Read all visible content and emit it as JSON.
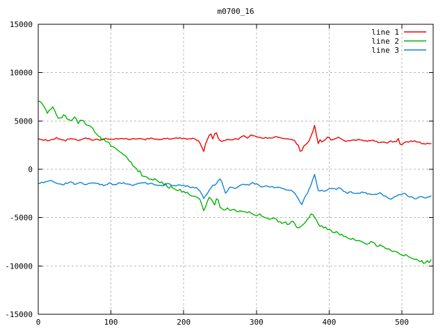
{
  "window": {
    "background": "#ffffff",
    "plot_title": "m0700_16"
  },
  "chart_data": {
    "type": "line",
    "title": "m0700_16",
    "xlabel": "",
    "ylabel": "",
    "xlim": [
      0,
      543
    ],
    "ylim": [
      -15000,
      15000
    ],
    "xticks": [
      0,
      100,
      200,
      300,
      400,
      500
    ],
    "yticks": [
      15000,
      10000,
      5000,
      0,
      -5000,
      -10000,
      -15000
    ],
    "grid": true,
    "grid_color": "#b8b8b8",
    "axis_color": "#000000",
    "legend_position": "top-right-inside",
    "series": [
      {
        "name": "line 1",
        "color": "#ee0000",
        "noise_amplitude": 110,
        "points": [
          [
            0,
            3100
          ],
          [
            15,
            3000
          ],
          [
            25,
            3250
          ],
          [
            35,
            2950
          ],
          [
            45,
            3150
          ],
          [
            55,
            3000
          ],
          [
            65,
            3200
          ],
          [
            75,
            3100
          ],
          [
            85,
            3050
          ],
          [
            95,
            3150
          ],
          [
            105,
            3100
          ],
          [
            115,
            3250
          ],
          [
            125,
            3100
          ],
          [
            135,
            3200
          ],
          [
            145,
            3100
          ],
          [
            155,
            3150
          ],
          [
            165,
            3100
          ],
          [
            175,
            3200
          ],
          [
            185,
            3150
          ],
          [
            195,
            3250
          ],
          [
            205,
            3100
          ],
          [
            215,
            3150
          ],
          [
            221,
            2950
          ],
          [
            224,
            2500
          ],
          [
            227,
            1750
          ],
          [
            230,
            2600
          ],
          [
            233,
            3200
          ],
          [
            237,
            3900
          ],
          [
            239,
            2900
          ],
          [
            244,
            3950
          ],
          [
            247,
            3300
          ],
          [
            250,
            3000
          ],
          [
            255,
            2950
          ],
          [
            265,
            3050
          ],
          [
            275,
            3150
          ],
          [
            283,
            3500
          ],
          [
            288,
            3250
          ],
          [
            293,
            3600
          ],
          [
            298,
            3400
          ],
          [
            305,
            3250
          ],
          [
            315,
            3200
          ],
          [
            325,
            3300
          ],
          [
            335,
            3250
          ],
          [
            345,
            3050
          ],
          [
            352,
            2950
          ],
          [
            357,
            2500
          ],
          [
            361,
            1700
          ],
          [
            365,
            2300
          ],
          [
            369,
            2750
          ],
          [
            373,
            3000
          ],
          [
            377,
            3800
          ],
          [
            380,
            4550
          ],
          [
            382,
            3700
          ],
          [
            385,
            2600
          ],
          [
            388,
            3100
          ],
          [
            391,
            2750
          ],
          [
            395,
            3150
          ],
          [
            399,
            3400
          ],
          [
            403,
            2950
          ],
          [
            407,
            3200
          ],
          [
            412,
            3300
          ],
          [
            417,
            3100
          ],
          [
            422,
            2950
          ],
          [
            430,
            3000
          ],
          [
            440,
            3050
          ],
          [
            450,
            2900
          ],
          [
            460,
            2950
          ],
          [
            470,
            2800
          ],
          [
            478,
            2700
          ],
          [
            485,
            2900
          ],
          [
            492,
            2750
          ],
          [
            495,
            3180
          ],
          [
            498,
            2450
          ],
          [
            505,
            2800
          ],
          [
            515,
            2900
          ],
          [
            525,
            2750
          ],
          [
            533,
            2650
          ],
          [
            541,
            2750
          ]
        ]
      },
      {
        "name": "line 2",
        "color": "#00b400",
        "noise_amplitude": 190,
        "points": [
          [
            0,
            6900
          ],
          [
            4,
            7050
          ],
          [
            8,
            6600
          ],
          [
            12,
            5800
          ],
          [
            16,
            6200
          ],
          [
            20,
            6450
          ],
          [
            24,
            5900
          ],
          [
            28,
            5100
          ],
          [
            32,
            5400
          ],
          [
            36,
            5650
          ],
          [
            40,
            5200
          ],
          [
            45,
            5050
          ],
          [
            50,
            5350
          ],
          [
            55,
            4900
          ],
          [
            60,
            5050
          ],
          [
            65,
            4700
          ],
          [
            70,
            4550
          ],
          [
            75,
            4200
          ],
          [
            80,
            3700
          ],
          [
            85,
            3250
          ],
          [
            90,
            3050
          ],
          [
            95,
            2800
          ],
          [
            100,
            2450
          ],
          [
            105,
            2250
          ],
          [
            110,
            2000
          ],
          [
            115,
            1700
          ],
          [
            120,
            1300
          ],
          [
            125,
            900
          ],
          [
            130,
            400
          ],
          [
            135,
            100
          ],
          [
            140,
            -300
          ],
          [
            145,
            -700
          ],
          [
            150,
            -950
          ],
          [
            155,
            -1150
          ],
          [
            160,
            -1000
          ],
          [
            165,
            -1250
          ],
          [
            170,
            -1400
          ],
          [
            175,
            -1600
          ],
          [
            180,
            -1800
          ],
          [
            185,
            -1950
          ],
          [
            190,
            -2100
          ],
          [
            195,
            -2200
          ],
          [
            200,
            -2300
          ],
          [
            205,
            -2500
          ],
          [
            210,
            -2700
          ],
          [
            215,
            -2900
          ],
          [
            220,
            -3000
          ],
          [
            224,
            -3400
          ],
          [
            227,
            -4300
          ],
          [
            230,
            -3900
          ],
          [
            233,
            -3300
          ],
          [
            236,
            -2700
          ],
          [
            239,
            -3200
          ],
          [
            242,
            -3700
          ],
          [
            246,
            -2900
          ],
          [
            250,
            -3900
          ],
          [
            255,
            -4200
          ],
          [
            260,
            -4000
          ],
          [
            265,
            -4300
          ],
          [
            270,
            -4100
          ],
          [
            275,
            -4400
          ],
          [
            280,
            -4250
          ],
          [
            285,
            -4500
          ],
          [
            290,
            -4400
          ],
          [
            295,
            -4650
          ],
          [
            300,
            -4800
          ],
          [
            305,
            -4600
          ],
          [
            310,
            -4900
          ],
          [
            315,
            -5050
          ],
          [
            320,
            -5200
          ],
          [
            325,
            -5000
          ],
          [
            330,
            -5400
          ],
          [
            335,
            -5600
          ],
          [
            340,
            -5400
          ],
          [
            345,
            -5700
          ],
          [
            350,
            -5500
          ],
          [
            355,
            -5900
          ],
          [
            360,
            -6100
          ],
          [
            365,
            -5700
          ],
          [
            370,
            -5300
          ],
          [
            374,
            -4800
          ],
          [
            378,
            -4600
          ],
          [
            382,
            -5300
          ],
          [
            386,
            -5700
          ],
          [
            390,
            -5900
          ],
          [
            395,
            -6100
          ],
          [
            400,
            -6200
          ],
          [
            405,
            -6400
          ],
          [
            410,
            -6550
          ],
          [
            415,
            -6700
          ],
          [
            420,
            -6900
          ],
          [
            425,
            -7100
          ],
          [
            430,
            -7250
          ],
          [
            435,
            -7150
          ],
          [
            440,
            -7400
          ],
          [
            445,
            -7500
          ],
          [
            450,
            -7700
          ],
          [
            455,
            -7550
          ],
          [
            460,
            -7450
          ],
          [
            465,
            -7800
          ],
          [
            470,
            -7900
          ],
          [
            475,
            -8100
          ],
          [
            480,
            -8200
          ],
          [
            485,
            -8350
          ],
          [
            490,
            -8500
          ],
          [
            495,
            -8650
          ],
          [
            500,
            -8850
          ],
          [
            505,
            -8950
          ],
          [
            510,
            -9050
          ],
          [
            515,
            -9200
          ],
          [
            520,
            -9350
          ],
          [
            525,
            -9500
          ],
          [
            530,
            -9650
          ],
          [
            535,
            -9500
          ],
          [
            538,
            -9650
          ],
          [
            541,
            -9300
          ]
        ]
      },
      {
        "name": "line 3",
        "color": "#0c82dc",
        "noise_amplitude": 120,
        "points": [
          [
            0,
            -1500
          ],
          [
            10,
            -1350
          ],
          [
            18,
            -1150
          ],
          [
            26,
            -1500
          ],
          [
            34,
            -1650
          ],
          [
            42,
            -1300
          ],
          [
            50,
            -1550
          ],
          [
            58,
            -1400
          ],
          [
            66,
            -1600
          ],
          [
            74,
            -1350
          ],
          [
            82,
            -1500
          ],
          [
            90,
            -1700
          ],
          [
            98,
            -1450
          ],
          [
            106,
            -1550
          ],
          [
            114,
            -1400
          ],
          [
            122,
            -1550
          ],
          [
            130,
            -1650
          ],
          [
            138,
            -1500
          ],
          [
            146,
            -1400
          ],
          [
            154,
            -1500
          ],
          [
            162,
            -1600
          ],
          [
            170,
            -1700
          ],
          [
            178,
            -1550
          ],
          [
            186,
            -1650
          ],
          [
            194,
            -1600
          ],
          [
            202,
            -1750
          ],
          [
            210,
            -1850
          ],
          [
            217,
            -1950
          ],
          [
            221,
            -2100
          ],
          [
            224,
            -2450
          ],
          [
            227,
            -3050
          ],
          [
            230,
            -2700
          ],
          [
            234,
            -2250
          ],
          [
            238,
            -1800
          ],
          [
            244,
            -1600
          ],
          [
            248,
            -1100
          ],
          [
            251,
            -900
          ],
          [
            254,
            -1700
          ],
          [
            258,
            -2550
          ],
          [
            262,
            -1900
          ],
          [
            270,
            -1950
          ],
          [
            276,
            -1750
          ],
          [
            282,
            -1500
          ],
          [
            288,
            -1700
          ],
          [
            294,
            -1400
          ],
          [
            300,
            -1600
          ],
          [
            308,
            -1800
          ],
          [
            316,
            -1700
          ],
          [
            324,
            -1850
          ],
          [
            332,
            -1950
          ],
          [
            340,
            -2100
          ],
          [
            348,
            -2200
          ],
          [
            353,
            -2500
          ],
          [
            358,
            -3100
          ],
          [
            362,
            -3800
          ],
          [
            366,
            -3000
          ],
          [
            370,
            -2500
          ],
          [
            374,
            -1800
          ],
          [
            377,
            -1100
          ],
          [
            380,
            -600
          ],
          [
            383,
            -1600
          ],
          [
            386,
            -2500
          ],
          [
            390,
            -2100
          ],
          [
            394,
            -2300
          ],
          [
            398,
            -2100
          ],
          [
            402,
            -2000
          ],
          [
            406,
            -1900
          ],
          [
            410,
            -2100
          ],
          [
            414,
            -1750
          ],
          [
            418,
            -2200
          ],
          [
            424,
            -2450
          ],
          [
            430,
            -2350
          ],
          [
            438,
            -2500
          ],
          [
            446,
            -2400
          ],
          [
            454,
            -2550
          ],
          [
            462,
            -2650
          ],
          [
            470,
            -2500
          ],
          [
            478,
            -2850
          ],
          [
            484,
            -3150
          ],
          [
            490,
            -2800
          ],
          [
            496,
            -2600
          ],
          [
            502,
            -2500
          ],
          [
            508,
            -2750
          ],
          [
            514,
            -2900
          ],
          [
            520,
            -3050
          ],
          [
            526,
            -2800
          ],
          [
            532,
            -2950
          ],
          [
            538,
            -2800
          ],
          [
            541,
            -2750
          ]
        ]
      }
    ]
  }
}
